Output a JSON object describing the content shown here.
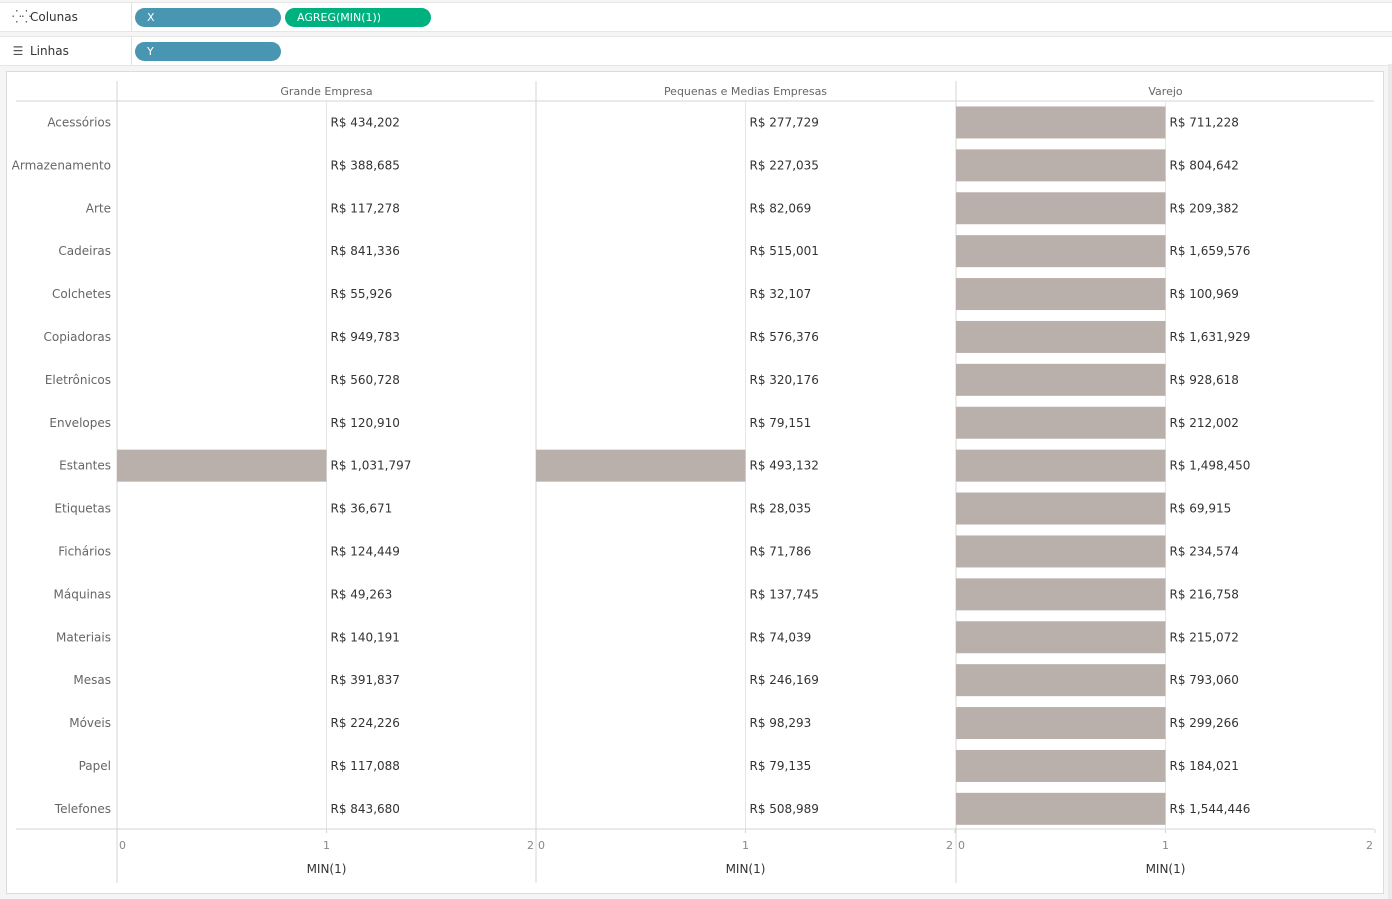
{
  "shelves": {
    "columns": {
      "label": "Colunas",
      "pills": [
        "X",
        "AGREG(MIN(1))"
      ]
    },
    "rows": {
      "label": "Linhas",
      "pills": [
        "Y"
      ]
    }
  },
  "colors": {
    "bar": "#bab0ab",
    "pill_dimension": "#4996b2",
    "pill_measure": "#00b180"
  },
  "chart_data": {
    "type": "bar",
    "orientation": "horizontal",
    "categories": [
      "Acessórios",
      "Armazenamento",
      "Arte",
      "Cadeiras",
      "Colchetes",
      "Copiadoras",
      "Eletrônicos",
      "Envelopes",
      "Estantes",
      "Etiquetas",
      "Fichários",
      "Máquinas",
      "Materiais",
      "Mesas",
      "Móveis",
      "Papel",
      "Telefones"
    ],
    "panels": [
      {
        "name": "Grande Empresa",
        "bar_visible": [
          false,
          false,
          false,
          false,
          false,
          false,
          false,
          false,
          true,
          false,
          false,
          false,
          false,
          false,
          false,
          false,
          false
        ],
        "labels": [
          "R$ 434,202",
          "R$ 388,685",
          "R$ 117,278",
          "R$ 841,336",
          "R$ 55,926",
          "R$ 949,783",
          "R$ 560,728",
          "R$ 120,910",
          "R$ 1,031,797",
          "R$ 36,671",
          "R$ 124,449",
          "R$ 49,263",
          "R$ 140,191",
          "R$ 391,837",
          "R$ 224,226",
          "R$ 117,088",
          "R$ 843,680"
        ]
      },
      {
        "name": "Pequenas e Medias Empresas",
        "bar_visible": [
          false,
          false,
          false,
          false,
          false,
          false,
          false,
          false,
          true,
          false,
          false,
          false,
          false,
          false,
          false,
          false,
          false
        ],
        "labels": [
          "R$ 277,729",
          "R$ 227,035",
          "R$ 82,069",
          "R$ 515,001",
          "R$ 32,107",
          "R$ 576,376",
          "R$ 320,176",
          "R$ 79,151",
          "R$ 493,132",
          "R$ 28,035",
          "R$ 71,786",
          "R$ 137,745",
          "R$ 74,039",
          "R$ 246,169",
          "R$ 98,293",
          "R$ 79,135",
          "R$ 508,989"
        ]
      },
      {
        "name": "Varejo",
        "bar_visible": [
          true,
          true,
          true,
          true,
          true,
          true,
          true,
          true,
          true,
          true,
          true,
          true,
          true,
          true,
          true,
          true,
          true
        ],
        "labels": [
          "R$ 711,228",
          "R$ 804,642",
          "R$ 209,382",
          "R$ 1,659,576",
          "R$ 100,969",
          "R$ 1,631,929",
          "R$ 928,618",
          "R$ 212,002",
          "R$ 1,498,450",
          "R$ 69,915",
          "R$ 234,574",
          "R$ 216,758",
          "R$ 215,072",
          "R$ 793,060",
          "R$ 299,266",
          "R$ 184,021",
          "R$ 1,544,446"
        ]
      }
    ],
    "value": 1,
    "xlim": [
      0,
      2
    ],
    "xticks": [
      "0",
      "1",
      "2"
    ],
    "xlabel": "MIN(1)"
  }
}
